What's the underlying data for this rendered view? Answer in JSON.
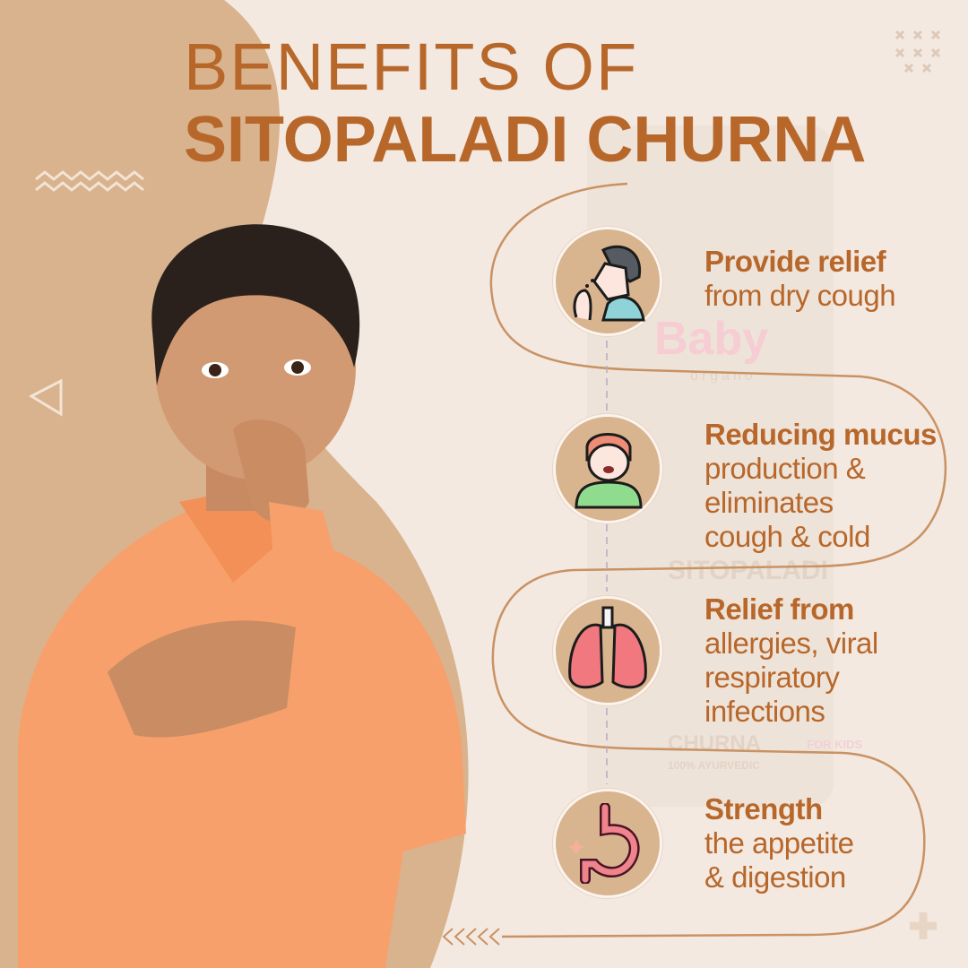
{
  "title": {
    "line1": "BENEFITS OF",
    "line2": "SITOPALADI CHURNA"
  },
  "product_watermark": {
    "brand": "Baby",
    "brand_sub": "organo",
    "name1": "SITOPALADI",
    "name2": "CHURNA",
    "tag": "FOR KIDS",
    "footer": "100% AYURVEDIC"
  },
  "benefits": [
    {
      "icon": "coughing-man-icon",
      "heading": "Provide relief",
      "lines": [
        "from dry cough"
      ]
    },
    {
      "icon": "sick-child-icon",
      "heading": "Reducing mucus",
      "lines": [
        "production &",
        "eliminates",
        "cough & cold"
      ]
    },
    {
      "icon": "lungs-icon",
      "heading": "Relief from",
      "lines": [
        "allergies, viral",
        "respiratory",
        "infections"
      ]
    },
    {
      "icon": "stomach-icon",
      "heading": "Strength",
      "lines": [
        "the appetite",
        "& digestion"
      ]
    }
  ],
  "colors": {
    "accent": "#b8672a",
    "background": "#f3e9e1",
    "tan": "#d8b48f",
    "shirt": "#f7a06c"
  }
}
